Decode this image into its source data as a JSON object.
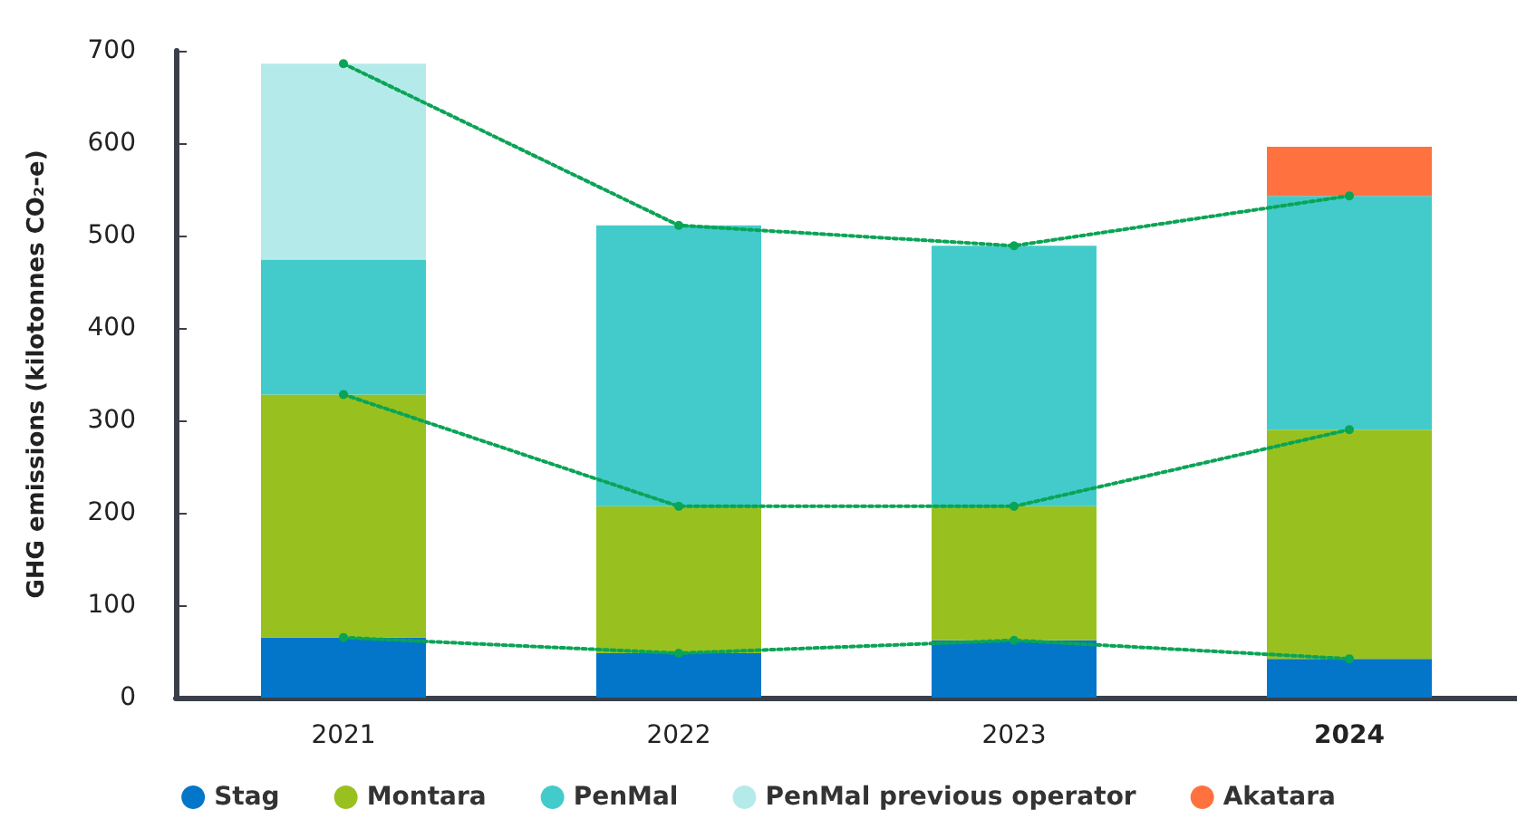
{
  "chart_data": {
    "type": "bar",
    "stacked": true,
    "ylabel": "GHG emissions (kilotonnes CO₂-e)",
    "categories": [
      "2021",
      "2022",
      "2023",
      "2024"
    ],
    "ylim": [
      0,
      700
    ],
    "yticks": [
      0,
      100,
      200,
      300,
      400,
      500,
      600,
      700
    ],
    "grid": false,
    "legend": "bottom",
    "series": [
      {
        "name": "Stag",
        "color": "#0376c9",
        "values": [
          65,
          48,
          62,
          42
        ]
      },
      {
        "name": "Montara",
        "color": "#98c11f",
        "values": [
          263,
          159,
          145,
          248
        ]
      },
      {
        "name": "PenMal",
        "color": "#43cbcb",
        "values": [
          146,
          304,
          282,
          253
        ]
      },
      {
        "name": "PenMal previous operator",
        "color": "#b4ebea",
        "values": [
          212,
          null,
          null,
          null
        ]
      },
      {
        "name": "Akatara",
        "color": "#ff7240",
        "values": [
          null,
          null,
          null,
          53
        ]
      },
      {
        "type": "line",
        "color": "#0aa456",
        "line_style": "dotted",
        "marker": "circle",
        "values": [
          65,
          48,
          62,
          42
        ]
      },
      {
        "type": "line",
        "color": "#0aa456",
        "line_style": "dotted",
        "marker": "circle",
        "values": [
          328,
          207,
          207,
          290
        ]
      },
      {
        "type": "line",
        "color": "#0aa456",
        "line_style": "dotted",
        "marker": "circle",
        "values": [
          686,
          511,
          489,
          543
        ]
      }
    ]
  }
}
